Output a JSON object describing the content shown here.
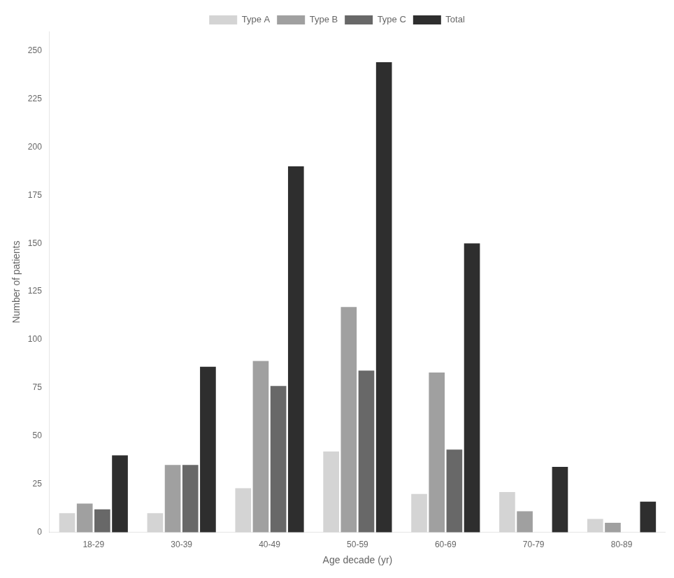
{
  "chart_data": {
    "type": "bar",
    "categories": [
      "18-29",
      "30-39",
      "40-49",
      "50-59",
      "60-69",
      "70-79",
      "80-89"
    ],
    "series": [
      {
        "name": "Type A",
        "color": "#d4d4d4",
        "values": [
          10,
          10,
          23,
          42,
          20,
          21,
          7
        ]
      },
      {
        "name": "Type B",
        "color": "#a0a0a0",
        "values": [
          15,
          35,
          89,
          117,
          83,
          11,
          5
        ]
      },
      {
        "name": "Type C",
        "color": "#686868",
        "values": [
          12,
          35,
          76,
          84,
          43,
          0,
          0
        ]
      },
      {
        "name": "Total",
        "color": "#2e2e2e",
        "values": [
          40,
          86,
          190,
          244,
          150,
          34,
          16
        ]
      }
    ],
    "xlabel": "Age decade (yr)",
    "ylabel": "Number of patients",
    "ylim": [
      0,
      260
    ],
    "yticks": [
      0,
      25,
      50,
      75,
      100,
      125,
      150,
      175,
      200,
      225,
      250
    ],
    "grid": false,
    "legend": "top"
  }
}
